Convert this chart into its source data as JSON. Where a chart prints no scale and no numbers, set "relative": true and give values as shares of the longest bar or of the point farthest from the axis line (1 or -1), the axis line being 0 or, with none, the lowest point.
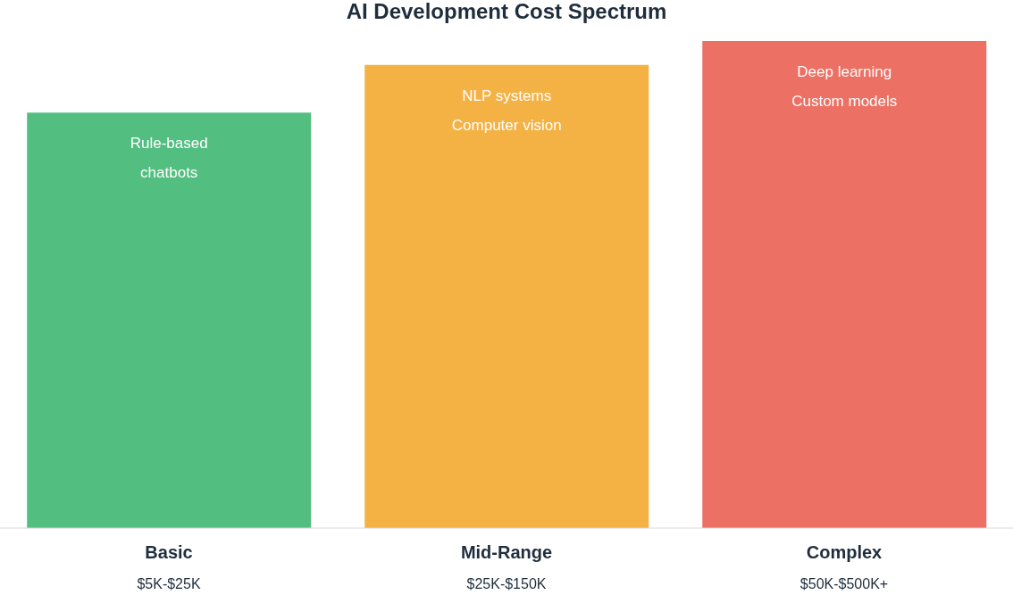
{
  "chart_data": {
    "type": "bar",
    "title": "AI Development Cost Spectrum",
    "relative": true,
    "categories": [
      "Basic\n$5K-$25K",
      "Mid-Range\n$25K-$150K",
      "Complex\n$50K-$500K+"
    ],
    "values": [
      0.853,
      0.951,
      1
    ],
    "colors": [
      "#52be80",
      "#f4b244",
      "#ec7063"
    ],
    "annotations": [
      "Rule-based\nchatbots",
      "NLP systems\nComputer vision",
      "Deep learning\nCustom models"
    ],
    "grid": false,
    "legend": false
  }
}
